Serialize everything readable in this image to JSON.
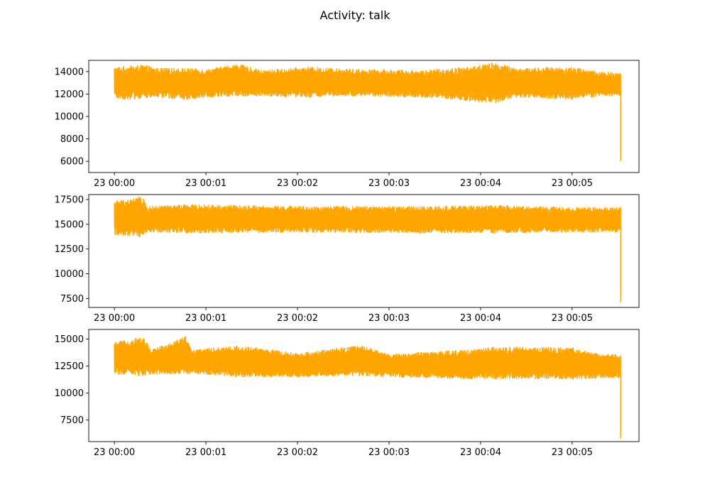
{
  "title": "Activity: talk",
  "colors": {
    "series": "#FFA500",
    "axes": "#000000",
    "background": "#ffffff"
  },
  "chart_data": [
    {
      "type": "line",
      "x_ticks": [
        "23 00:00",
        "23 00:01",
        "23 00:02",
        "23 00:03",
        "23 00:04",
        "23 00:05"
      ],
      "xlim_minutes": [
        -0.28,
        5.73
      ],
      "ylim": [
        5000,
        15000
      ],
      "y_ticks": [
        6000,
        8000,
        10000,
        12000,
        14000
      ],
      "y_tick_labels": [
        "6000",
        "8000",
        "10000",
        "12000",
        "14000"
      ],
      "band": {
        "x_start_minutes": 0.0,
        "x_end_minutes": 5.53,
        "low": 12000,
        "high": 14000,
        "end_drop_to": 6000
      },
      "envelope": [
        {
          "x": 0.0,
          "low": 11600,
          "high": 14400
        },
        {
          "x": 0.15,
          "low": 11500,
          "high": 14500
        },
        {
          "x": 0.33,
          "low": 11600,
          "high": 14600
        },
        {
          "x": 0.45,
          "low": 11700,
          "high": 14300
        },
        {
          "x": 0.8,
          "low": 11500,
          "high": 14300
        },
        {
          "x": 1.0,
          "low": 11700,
          "high": 14200
        },
        {
          "x": 1.35,
          "low": 11800,
          "high": 14700
        },
        {
          "x": 1.6,
          "low": 11800,
          "high": 14100
        },
        {
          "x": 2.1,
          "low": 11700,
          "high": 14400
        },
        {
          "x": 2.7,
          "low": 11800,
          "high": 14200
        },
        {
          "x": 3.35,
          "low": 11700,
          "high": 14100
        },
        {
          "x": 3.85,
          "low": 11400,
          "high": 14400
        },
        {
          "x": 4.15,
          "low": 11100,
          "high": 14800
        },
        {
          "x": 4.4,
          "low": 11700,
          "high": 14300
        },
        {
          "x": 5.0,
          "low": 11500,
          "high": 14400
        },
        {
          "x": 5.3,
          "low": 11800,
          "high": 14000
        },
        {
          "x": 5.52,
          "low": 11800,
          "high": 13900
        }
      ]
    },
    {
      "type": "line",
      "x_ticks": [
        "23 00:00",
        "23 00:01",
        "23 00:02",
        "23 00:03",
        "23 00:04",
        "23 00:05"
      ],
      "xlim_minutes": [
        -0.28,
        5.73
      ],
      "ylim": [
        6600,
        18000
      ],
      "y_ticks": [
        7500,
        10000,
        12500,
        15000,
        17500
      ],
      "y_tick_labels": [
        "7500",
        "10000",
        "12500",
        "15000",
        "17500"
      ],
      "band": {
        "x_start_minutes": 0.0,
        "x_end_minutes": 5.53,
        "low": 14300,
        "high": 16700,
        "end_drop_to": 7100
      },
      "envelope": [
        {
          "x": 0.0,
          "low": 13900,
          "high": 17400
        },
        {
          "x": 0.2,
          "low": 13800,
          "high": 17600
        },
        {
          "x": 0.32,
          "low": 13600,
          "high": 17800
        },
        {
          "x": 0.35,
          "low": 14200,
          "high": 16800
        },
        {
          "x": 0.8,
          "low": 14100,
          "high": 17000
        },
        {
          "x": 2.0,
          "low": 14200,
          "high": 16800
        },
        {
          "x": 3.5,
          "low": 14100,
          "high": 16800
        },
        {
          "x": 4.15,
          "low": 14100,
          "high": 16900
        },
        {
          "x": 5.0,
          "low": 14200,
          "high": 16700
        },
        {
          "x": 5.52,
          "low": 14200,
          "high": 16700
        }
      ]
    },
    {
      "type": "line",
      "x_ticks": [
        "23 00:00",
        "23 00:01",
        "23 00:02",
        "23 00:03",
        "23 00:04",
        "23 00:05"
      ],
      "xlim_minutes": [
        -0.28,
        5.73
      ],
      "ylim": [
        5500,
        15900
      ],
      "y_ticks": [
        7500,
        10000,
        12500,
        15000
      ],
      "y_tick_labels": [
        "7500",
        "10000",
        "12500",
        "15000"
      ],
      "band": {
        "x_start_minutes": 0.0,
        "x_end_minutes": 5.53,
        "low": 11800,
        "high": 13700,
        "end_drop_to": 5800
      },
      "envelope": [
        {
          "x": 0.0,
          "low": 11800,
          "high": 14700
        },
        {
          "x": 0.32,
          "low": 11600,
          "high": 15200
        },
        {
          "x": 0.4,
          "low": 11700,
          "high": 14000
        },
        {
          "x": 0.78,
          "low": 11800,
          "high": 15300
        },
        {
          "x": 0.85,
          "low": 11800,
          "high": 14000
        },
        {
          "x": 1.35,
          "low": 11500,
          "high": 14400
        },
        {
          "x": 2.0,
          "low": 11500,
          "high": 13700
        },
        {
          "x": 2.7,
          "low": 11600,
          "high": 14400
        },
        {
          "x": 3.0,
          "low": 11500,
          "high": 13600
        },
        {
          "x": 3.85,
          "low": 11300,
          "high": 14000
        },
        {
          "x": 4.15,
          "low": 11300,
          "high": 14300
        },
        {
          "x": 5.0,
          "low": 11300,
          "high": 14200
        },
        {
          "x": 5.3,
          "low": 11400,
          "high": 13600
        },
        {
          "x": 5.52,
          "low": 11400,
          "high": 13600
        }
      ]
    }
  ]
}
